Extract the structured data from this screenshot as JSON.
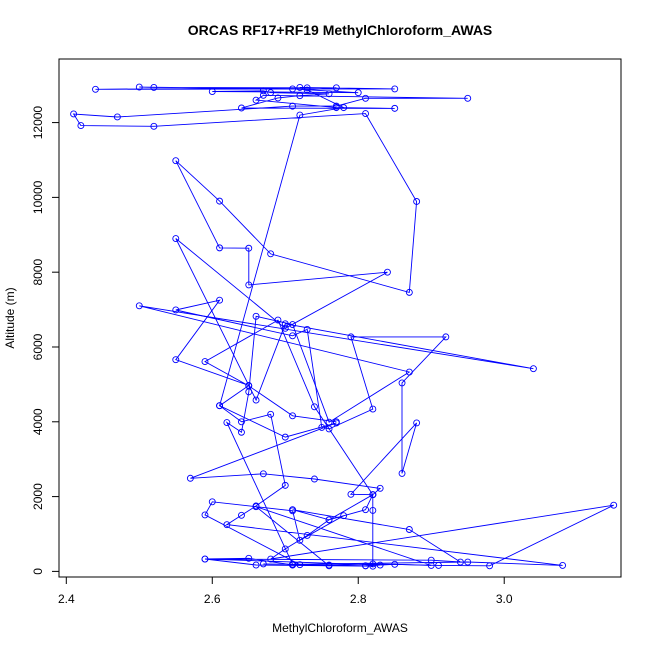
{
  "chart_data": {
    "type": "line",
    "title": "ORCAS RF17+RF19 MethylChloroform_AWAS",
    "xlabel": "MethylChloroform_AWAS",
    "ylabel": "Altitude (m)",
    "xlim": [
      2.39,
      3.16
    ],
    "ylim": [
      -150,
      13700
    ],
    "x_ticks": [
      2.4,
      2.6,
      2.8,
      3.0
    ],
    "x_tick_labels": [
      "2.4",
      "2.6",
      "2.8",
      "3.0"
    ],
    "y_ticks": [
      0,
      2000,
      4000,
      6000,
      8000,
      10000,
      12000
    ],
    "y_tick_labels": [
      "0",
      "2000",
      "4000",
      "6000",
      "8000",
      "10000",
      "12000"
    ],
    "grid": false,
    "marker": "open-circle",
    "colors": {
      "series": "#0000ff",
      "axis": "#000000",
      "background": "#ffffff"
    },
    "series": [
      {
        "name": "RF17",
        "points": [
          [
            2.81,
            150
          ],
          [
            2.83,
            170
          ],
          [
            2.59,
            330
          ],
          [
            2.9,
            300
          ],
          [
            2.94,
            250
          ],
          [
            2.87,
            1120
          ],
          [
            2.71,
            1650
          ],
          [
            2.76,
            1380
          ],
          [
            2.81,
            1650
          ],
          [
            2.82,
            2050
          ],
          [
            2.83,
            2220
          ],
          [
            2.74,
            2470
          ],
          [
            2.67,
            2610
          ],
          [
            2.57,
            2490
          ],
          [
            2.77,
            3970
          ],
          [
            2.7,
            3590
          ],
          [
            2.61,
            4430
          ],
          [
            2.65,
            4970
          ],
          [
            2.55,
            5660
          ],
          [
            2.61,
            7250
          ],
          [
            2.55,
            6990
          ],
          [
            2.71,
            6300
          ],
          [
            2.73,
            6470
          ],
          [
            2.75,
            3850
          ],
          [
            2.76,
            3810
          ],
          [
            2.82,
            4340
          ],
          [
            2.79,
            6270
          ],
          [
            2.92,
            6270
          ],
          [
            2.86,
            5040
          ],
          [
            2.86,
            2620
          ],
          [
            2.88,
            3970
          ],
          [
            2.79,
            2060
          ],
          [
            2.82,
            2050
          ],
          [
            2.82,
            1630
          ],
          [
            2.82,
            140
          ],
          [
            2.66,
            170
          ],
          [
            2.59,
            330
          ],
          [
            2.65,
            350
          ],
          [
            2.71,
            170
          ],
          [
            2.76,
            170
          ],
          [
            2.82,
            200
          ],
          [
            2.91,
            160
          ],
          [
            2.98,
            150
          ],
          [
            3.15,
            1770
          ],
          [
            2.68,
            330
          ],
          [
            2.7,
            600
          ],
          [
            2.73,
            960
          ],
          [
            2.76,
            1380
          ],
          [
            2.82,
            2050
          ],
          [
            2.74,
            4400
          ],
          [
            2.69,
            6720
          ],
          [
            2.59,
            5610
          ],
          [
            2.65,
            4960
          ],
          [
            2.71,
            4160
          ],
          [
            2.77,
            4000
          ]
        ]
      },
      {
        "name": "RF19",
        "points": [
          [
            2.78,
            1490
          ],
          [
            2.72,
            830
          ],
          [
            2.71,
            1620
          ],
          [
            2.6,
            1860
          ],
          [
            2.59,
            1510
          ],
          [
            2.72,
            180
          ],
          [
            2.71,
            180
          ],
          [
            2.76,
            150
          ],
          [
            2.66,
            1730
          ],
          [
            2.9,
            160
          ],
          [
            2.85,
            190
          ],
          [
            2.81,
            150
          ],
          [
            2.71,
            190
          ],
          [
            2.62,
            3980
          ],
          [
            2.64,
            3720
          ],
          [
            2.65,
            4800
          ],
          [
            2.66,
            6820
          ],
          [
            2.71,
            6600
          ],
          [
            2.76,
            3990
          ],
          [
            2.87,
            5330
          ],
          [
            2.5,
            7100
          ],
          [
            3.04,
            5420
          ],
          [
            2.7,
            6620
          ],
          [
            2.66,
            4580
          ],
          [
            2.55,
            8900
          ],
          [
            2.7,
            6500
          ],
          [
            2.84,
            8000
          ],
          [
            2.65,
            7660
          ],
          [
            2.65,
            8640
          ],
          [
            2.61,
            8650
          ],
          [
            2.55,
            10980
          ],
          [
            2.61,
            9900
          ],
          [
            2.68,
            8490
          ],
          [
            2.87,
            7460
          ],
          [
            2.88,
            9890
          ],
          [
            2.81,
            12240
          ],
          [
            2.52,
            11900
          ],
          [
            2.42,
            11920
          ],
          [
            2.41,
            12230
          ],
          [
            2.47,
            12150
          ],
          [
            2.71,
            12440
          ],
          [
            2.77,
            12440
          ],
          [
            2.81,
            12650
          ],
          [
            2.95,
            12650
          ],
          [
            2.67,
            12730
          ],
          [
            2.66,
            12600
          ],
          [
            2.77,
            12400
          ],
          [
            2.85,
            12380
          ],
          [
            2.64,
            12390
          ],
          [
            2.69,
            12660
          ],
          [
            2.72,
            12720
          ],
          [
            2.76,
            12770
          ],
          [
            2.68,
            12800
          ],
          [
            2.67,
            12850
          ],
          [
            2.6,
            12830
          ],
          [
            2.8,
            12800
          ],
          [
            2.71,
            12900
          ],
          [
            2.5,
            12950
          ],
          [
            2.52,
            12940
          ],
          [
            2.73,
            12930
          ],
          [
            2.72,
            12940
          ],
          [
            2.85,
            12900
          ],
          [
            2.44,
            12890
          ],
          [
            2.77,
            12930
          ],
          [
            2.73,
            12870
          ],
          [
            2.78,
            12400
          ],
          [
            2.72,
            12200
          ],
          [
            2.61,
            4430
          ],
          [
            2.64,
            4000
          ],
          [
            2.68,
            4200
          ],
          [
            2.7,
            2300
          ],
          [
            2.66,
            1750
          ],
          [
            2.64,
            1500
          ],
          [
            2.62,
            1250
          ],
          [
            3.08,
            160
          ],
          [
            2.95,
            250
          ],
          [
            2.71,
            190
          ],
          [
            2.67,
            200
          ]
        ]
      }
    ]
  }
}
